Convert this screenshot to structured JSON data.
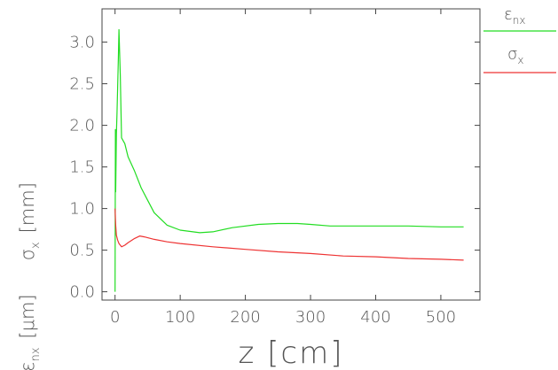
{
  "chart_data": {
    "type": "line",
    "xlabel": "z [cm]",
    "ylabel": {
      "emittance_symbol": "ε",
      "emittance_sub": "nx",
      "emittance_unit": "[μm]",
      "sigma_symbol": "σ",
      "sigma_sub": "x",
      "sigma_unit": "[mm]"
    },
    "xlim": [
      -20,
      560
    ],
    "ylim": [
      -0.1,
      3.4
    ],
    "xticks": [
      "0",
      "100",
      "200",
      "300",
      "400",
      "500"
    ],
    "xtick_values": [
      0,
      100,
      200,
      300,
      400,
      500
    ],
    "yticks": [
      "0.0",
      "0.5",
      "1.0",
      "1.5",
      "2.0",
      "2.5",
      "3.0"
    ],
    "ytick_values": [
      0.0,
      0.5,
      1.0,
      1.5,
      2.0,
      2.5,
      3.0
    ],
    "grid": false,
    "legend_position": "top-right outside",
    "series": [
      {
        "name_symbol": "ε",
        "name_sub": "nx",
        "color": "#22dd22",
        "x": [
          0,
          0.5,
          1,
          2,
          3,
          4,
          5,
          6,
          8,
          10,
          15,
          20,
          30,
          40,
          50,
          60,
          80,
          100,
          130,
          150,
          180,
          220,
          250,
          280,
          300,
          330,
          360,
          400,
          450,
          500,
          535
        ],
        "y": [
          0.0,
          1.95,
          1.2,
          1.9,
          2.15,
          2.45,
          2.8,
          3.15,
          2.6,
          1.85,
          1.78,
          1.62,
          1.45,
          1.25,
          1.1,
          0.95,
          0.8,
          0.74,
          0.71,
          0.72,
          0.77,
          0.81,
          0.82,
          0.82,
          0.81,
          0.79,
          0.79,
          0.79,
          0.79,
          0.78,
          0.78
        ]
      },
      {
        "name_symbol": "σ",
        "name_sub": "x",
        "color": "#ee3333",
        "x": [
          0,
          1,
          2,
          4,
          6,
          10,
          15,
          20,
          30,
          38,
          45,
          60,
          80,
          100,
          150,
          200,
          250,
          300,
          350,
          400,
          450,
          500,
          535
        ],
        "y": [
          1.0,
          0.8,
          0.68,
          0.62,
          0.58,
          0.54,
          0.56,
          0.59,
          0.64,
          0.67,
          0.66,
          0.63,
          0.6,
          0.58,
          0.54,
          0.51,
          0.48,
          0.46,
          0.43,
          0.42,
          0.4,
          0.39,
          0.38
        ]
      }
    ]
  }
}
